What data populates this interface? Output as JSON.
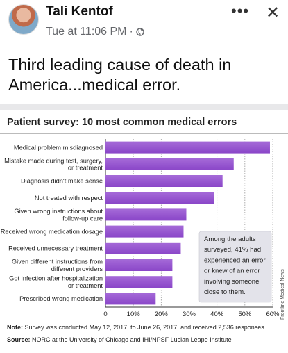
{
  "post": {
    "author": "Tali Kentof",
    "time": "Tue at 11:06 PM",
    "separator": "·",
    "more_glyph": "•••",
    "close_glyph": "✕",
    "text": "Third leading cause of death in America...medical error."
  },
  "figure": {
    "note_label": "Note:",
    "note": "Survey was conducted May 12, 2017, to June 26, 2017, and received 2,536 responses.",
    "source_label": "Source:",
    "source": "NORC at the University of Chicago and IHI/NPSF Lucian Leape Institute",
    "credit": "Frontline Medical News",
    "callout": [
      "Among the adults",
      "surveyed, 41% had",
      "experienced an error",
      "or knew of an error",
      "involving someone",
      "close to them."
    ]
  },
  "colors": {
    "bar": "#8a46c8",
    "bar_top": "#a56ad8",
    "callout_bg": "#e3e3ea"
  },
  "chart_data": {
    "type": "bar",
    "orientation": "horizontal",
    "title": "Patient survey: 10 most common medical errors",
    "categories": [
      "Medical problem misdiagnosed",
      "Mistake made during test, surgery, or treatment",
      "Diagnosis didn't make sense",
      "Not treated with respect",
      "Given wrong instructions about follow-up care",
      "Received wrong medication dosage",
      "Received unnecessary treatment",
      "Given different instructions from different providers",
      "Got infection after hospitalization or treatment",
      "Prescribed wrong medication"
    ],
    "category_lines": [
      [
        "Medical problem misdiagnosed"
      ],
      [
        "Mistake made during test, surgery,",
        "or treatment"
      ],
      [
        "Diagnosis didn't make sense"
      ],
      [
        "Not treated with respect"
      ],
      [
        "Given wrong instructions about",
        "follow-up care"
      ],
      [
        "Received wrong medication dosage"
      ],
      [
        "Received unnecessary treatment"
      ],
      [
        "Given different instructions from",
        "different providers"
      ],
      [
        "Got infection after hospitalization",
        "or treatment"
      ],
      [
        "Prescribed wrong medication"
      ]
    ],
    "values": [
      59,
      46,
      42,
      39,
      29,
      28,
      27,
      24,
      24,
      18
    ],
    "unit": "%",
    "xlim": [
      0,
      60
    ],
    "xticks": [
      "0",
      "10%",
      "20%",
      "30%",
      "40%",
      "50%",
      "60%"
    ],
    "xtick_values": [
      0,
      10,
      20,
      30,
      40,
      50,
      60
    ],
    "grid": "vertical dotted"
  }
}
